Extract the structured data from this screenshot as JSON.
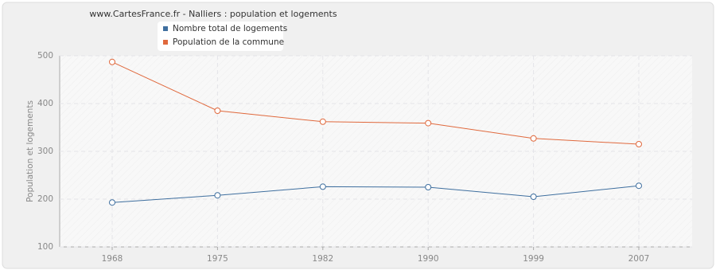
{
  "chart_data": {
    "type": "line",
    "title": "www.CartesFrance.fr - Nalliers : population et logements",
    "y_label": "Population et logements",
    "categories": [
      "1968",
      "1975",
      "1982",
      "1990",
      "1999",
      "2007"
    ],
    "series": [
      {
        "name": "Nombre total de logements",
        "color": "#3f6f9f",
        "values": [
          193,
          208,
          226,
          225,
          205,
          228
        ]
      },
      {
        "name": "Population de la commune",
        "color": "#e0693d",
        "values": [
          487,
          385,
          362,
          359,
          327,
          315
        ]
      }
    ],
    "ylim": [
      100,
      500
    ],
    "yticks": [
      100,
      200,
      300,
      400,
      500
    ],
    "grid": true
  }
}
